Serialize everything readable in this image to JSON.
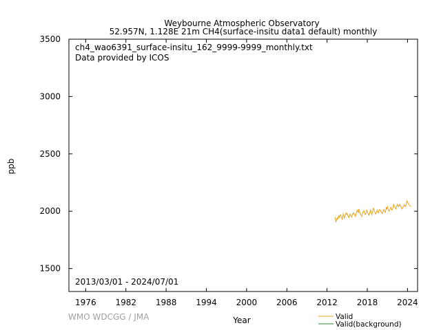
{
  "chart_data": {
    "type": "line",
    "title": "Weybourne Atmospheric Observatory",
    "subtitle": "52.957N, 1.128E 21m    CH4(surface-insitu data1 default) monthly",
    "file_label": "ch4_wao6391_surface-insitu_162_9999-9999_monthly.txt",
    "provider": "Data provided by ICOS",
    "date_range": "2013/03/01 - 2024/07/01",
    "xlabel": "Year",
    "ylabel": "ppb",
    "xlim": [
      1973.5,
      2025.5
    ],
    "ylim": [
      1300,
      3500
    ],
    "x_ticks": [
      1976,
      1982,
      1988,
      1994,
      2000,
      2006,
      2012,
      2018,
      2024
    ],
    "y_ticks": [
      1500,
      2000,
      2500,
      3000,
      3500
    ],
    "grid": false,
    "legend_position": "bottom-right",
    "series": [
      {
        "name": "Valid",
        "color": "#e8a317",
        "x": [
          2013.17,
          2013.25,
          2013.33,
          2013.42,
          2013.5,
          2013.58,
          2013.67,
          2013.75,
          2013.83,
          2013.92,
          2014.0,
          2014.08,
          2014.17,
          2014.25,
          2014.33,
          2014.42,
          2014.5,
          2014.58,
          2014.67,
          2014.75,
          2014.83,
          2014.92,
          2015.0,
          2015.08,
          2015.17,
          2015.25,
          2015.33,
          2015.42,
          2015.5,
          2015.58,
          2015.67,
          2015.75,
          2015.83,
          2015.92,
          2016.0,
          2016.08,
          2016.17,
          2016.25,
          2016.33,
          2016.42,
          2016.5,
          2016.58,
          2016.67,
          2016.75,
          2016.83,
          2016.92,
          2017.0,
          2017.08,
          2017.17,
          2017.25,
          2017.33,
          2017.42,
          2017.5,
          2017.58,
          2017.67,
          2017.75,
          2017.83,
          2017.92,
          2018.0,
          2018.08,
          2018.17,
          2018.25,
          2018.33,
          2018.42,
          2018.5,
          2018.58,
          2018.67,
          2018.75,
          2018.83,
          2018.92,
          2019.0,
          2019.08,
          2019.17,
          2019.25,
          2019.33,
          2019.42,
          2019.5,
          2019.58,
          2019.67,
          2019.75,
          2019.83,
          2019.92,
          2020.0,
          2020.08,
          2020.17,
          2020.25,
          2020.33,
          2020.42,
          2020.5,
          2020.58,
          2020.67,
          2020.75,
          2020.83,
          2020.92,
          2021.0,
          2021.08,
          2021.17,
          2021.25,
          2021.33,
          2021.42,
          2021.5,
          2021.58,
          2021.67,
          2021.75,
          2021.83,
          2021.92,
          2022.0,
          2022.08,
          2022.17,
          2022.25,
          2022.33,
          2022.42,
          2022.5,
          2022.58,
          2022.67,
          2022.75,
          2022.83,
          2022.92,
          2023.0,
          2023.08,
          2023.17,
          2023.25,
          2023.33,
          2023.42,
          2023.5,
          2023.58,
          2023.67,
          2023.75,
          2023.83,
          2023.92,
          2024.0,
          2024.08,
          2024.17,
          2024.25,
          2024.33,
          2024.42,
          2024.5
        ],
        "y": [
          1950,
          1935,
          1905,
          1925,
          1940,
          1930,
          1950,
          1960,
          1945,
          1965,
          1970,
          1960,
          1945,
          1930,
          1950,
          1975,
          1960,
          1940,
          1955,
          1970,
          1985,
          1975,
          1980,
          1965,
          1950,
          1945,
          1960,
          1975,
          1970,
          1960,
          1950,
          1965,
          1980,
          1975,
          1985,
          1970,
          1960,
          1955,
          1980,
          1995,
          2010,
          2000,
          1985,
          2020,
          2000,
          1980,
          1975,
          1960,
          1955,
          1975,
          1990,
          2000,
          2005,
          1985,
          1970,
          1975,
          1990,
          2010,
          2000,
          1985,
          1975,
          1965,
          1980,
          2000,
          2010,
          1990,
          1970,
          1985,
          2000,
          2030,
          2015,
          2000,
          1985,
          1975,
          1985,
          2000,
          2010,
          1995,
          1985,
          2000,
          2015,
          2010,
          2005,
          1990,
          1985,
          1980,
          1995,
          2010,
          2015,
          2000,
          1990,
          2005,
          2030,
          2020,
          2040,
          2025,
          2010,
          2000,
          2005,
          2020,
          2035,
          2025,
          2010,
          2015,
          2030,
          2060,
          2050,
          2040,
          2030,
          2020,
          2035,
          2050,
          2060,
          2045,
          2040,
          2050,
          2060,
          2050,
          2040,
          2030,
          2020,
          2030,
          2035,
          2045,
          2055,
          2050,
          2040,
          2050,
          2065,
          2090,
          2080,
          2070,
          2060,
          2055,
          2050,
          2045,
          2040
        ]
      }
    ]
  },
  "legend": {
    "items": [
      {
        "label": "Valid",
        "color": "#e8a317"
      },
      {
        "label": "Valid(background)",
        "color": "#2e7d32"
      }
    ]
  },
  "watermark": "WMO WDCGG / JMA"
}
